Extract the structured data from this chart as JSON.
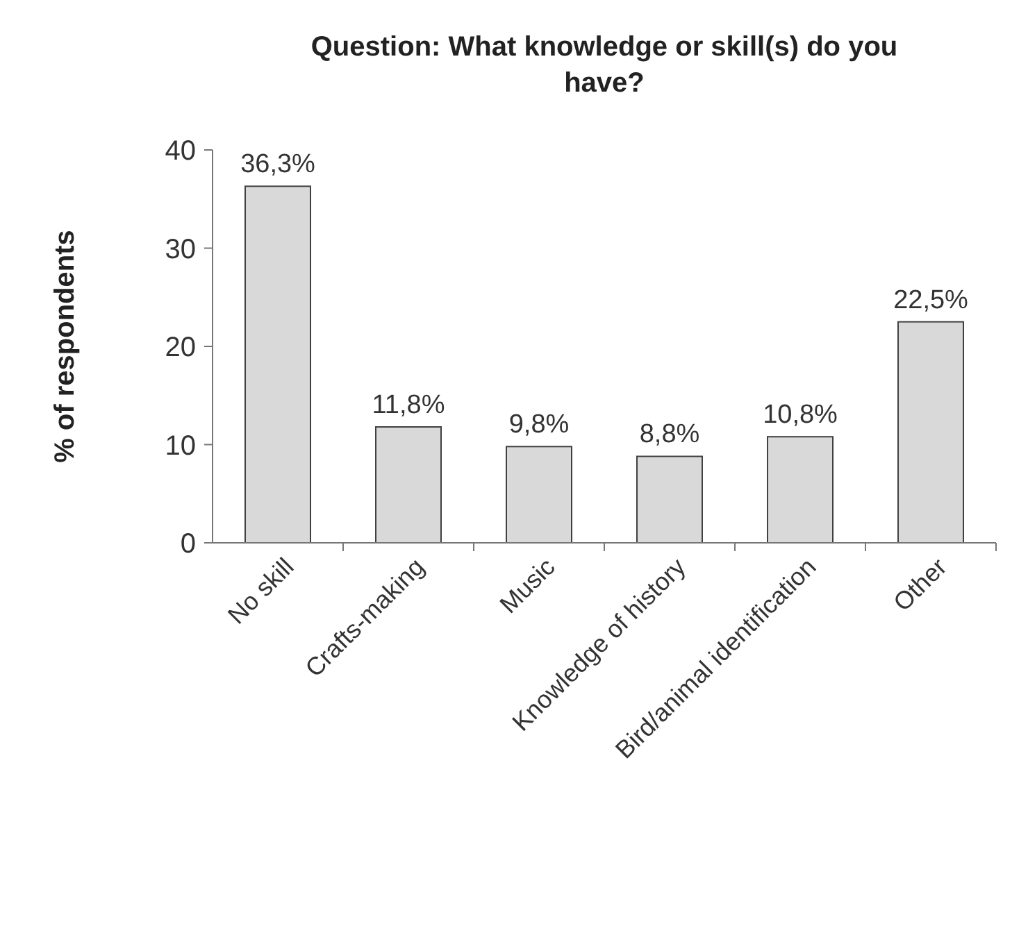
{
  "chart_data": {
    "type": "bar",
    "title": "Question: What knowledge or skill(s) do you have?",
    "ylabel": "% of respondents",
    "categories": [
      "No skill",
      "Crafts-making",
      "Music",
      "Knowledge of history",
      "Bird/animal identification",
      "Other"
    ],
    "values": [
      36.3,
      11.8,
      9.8,
      8.8,
      10.8,
      22.5
    ],
    "value_labels": [
      "36,3%",
      "11,8%",
      "9,8%",
      "8,8%",
      "10,8%",
      "22,5%"
    ],
    "color": "#d9d9d9",
    "ylim": [
      0,
      40
    ],
    "yticks": [
      0,
      10,
      20,
      30,
      40
    ],
    "grid": false
  }
}
